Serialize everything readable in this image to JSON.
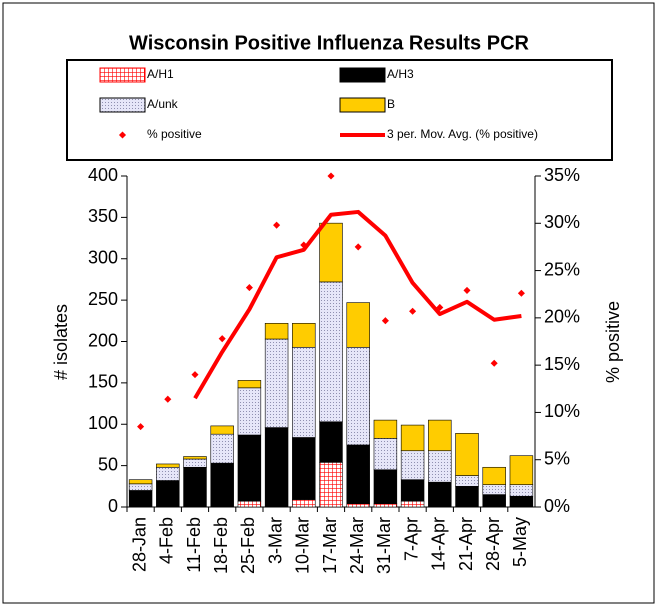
{
  "chart_data": {
    "type": "bar",
    "stacked": true,
    "title": "Wisconsin Positive Influenza Results PCR",
    "ylabel": "# isolates",
    "y2label": "% positive",
    "categories": [
      "28-Jan",
      "4-Feb",
      "11-Feb",
      "18-Feb",
      "25-Feb",
      "3-Mar",
      "10-Mar",
      "17-Mar",
      "24-Mar",
      "31-Mar",
      "7-Apr",
      "14-Apr",
      "21-Apr",
      "28-Apr",
      "5-May"
    ],
    "series": [
      {
        "name": "A/H1",
        "type": "bar",
        "color": "#ff0000",
        "pattern": "hatch",
        "values": [
          0,
          0,
          0,
          0,
          7,
          0,
          9,
          54,
          4,
          4,
          7,
          0,
          0,
          0,
          0
        ]
      },
      {
        "name": "A/H3",
        "type": "bar",
        "color": "#000000",
        "values": [
          20,
          32,
          48,
          53,
          80,
          96,
          75,
          49,
          71,
          41,
          26,
          30,
          25,
          15,
          13
        ]
      },
      {
        "name": "A/unk",
        "type": "bar",
        "color": "#e6e6f8",
        "pattern": "dots",
        "values": [
          8,
          16,
          10,
          35,
          57,
          107,
          109,
          169,
          118,
          38,
          35,
          38,
          13,
          12,
          14
        ]
      },
      {
        "name": "B",
        "type": "bar",
        "color": "#ffcc00",
        "values": [
          5,
          4,
          3,
          10,
          9,
          19,
          29,
          71,
          54,
          22,
          31,
          37,
          51,
          21,
          35
        ]
      },
      {
        "name": "% positive",
        "type": "scatter",
        "axis": "y2",
        "color": "#ff0000",
        "values": [
          8.5,
          11.4,
          14,
          17.8,
          23.2,
          29.8,
          27.7,
          35,
          27.5,
          19.7,
          20.7,
          21.1,
          22.9,
          15.2,
          22.6
        ]
      },
      {
        "name": "3 per. Mov. Avg. (% positive)",
        "type": "line",
        "axis": "y2",
        "color": "#ff0000",
        "values": [
          null,
          null,
          11.5,
          16.4,
          20.9,
          26.4,
          27.2,
          30.9,
          31.2,
          28.7,
          23.7,
          20.4,
          21.7,
          19.8,
          20.2
        ]
      }
    ],
    "ylim": [
      0,
      400
    ],
    "yticks": [
      0,
      50,
      100,
      150,
      200,
      250,
      300,
      350,
      400
    ],
    "y2lim": [
      0,
      35
    ],
    "y2ticks": [
      {
        "value": 0,
        "label": "0%"
      },
      {
        "value": 5,
        "label": "5%"
      },
      {
        "value": 10,
        "label": "10%"
      },
      {
        "value": 15,
        "label": "15%"
      },
      {
        "value": 20,
        "label": "20%"
      },
      {
        "value": 25,
        "label": "25%"
      },
      {
        "value": 30,
        "label": "30%"
      },
      {
        "value": 35,
        "label": "35%"
      }
    ],
    "legend": "top"
  }
}
